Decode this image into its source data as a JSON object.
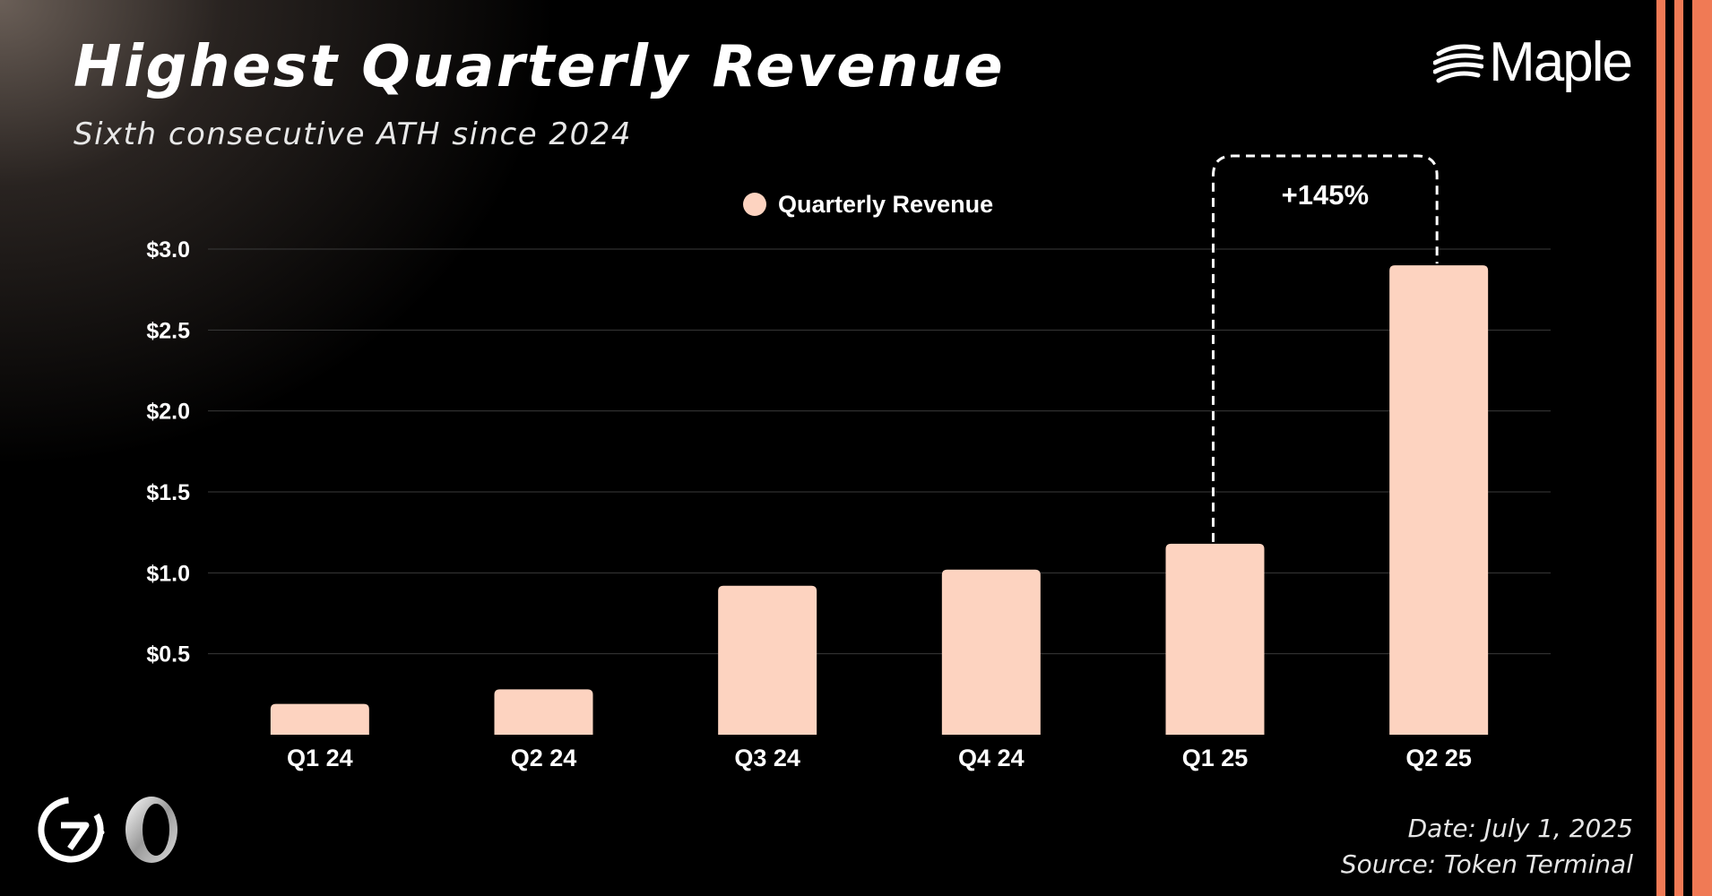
{
  "header": {
    "title": "Highest Quarterly Revenue",
    "subtitle": "Sixth consecutive ATH since 2024"
  },
  "brand": {
    "name": "Maple",
    "icon": "maple-wave-icon"
  },
  "chart_data": {
    "type": "bar",
    "title": "Highest Quarterly Revenue",
    "subtitle": "Sixth consecutive ATH since 2024",
    "categories": [
      "Q1 24",
      "Q2 24",
      "Q3 24",
      "Q4 24",
      "Q1 25",
      "Q2 25"
    ],
    "series": [
      {
        "name": "Quarterly Revenue",
        "values": [
          0.19,
          0.28,
          0.92,
          1.02,
          1.18,
          2.9
        ]
      }
    ],
    "ylim": [
      0,
      3.0
    ],
    "y_ticks": [
      0.5,
      1.0,
      1.5,
      2.0,
      2.5,
      3.0
    ],
    "y_tick_labels": [
      "$0.5",
      "$1.0",
      "$1.5",
      "$2.0",
      "$2.5",
      "$3.0"
    ],
    "xlabel": "",
    "ylabel": "",
    "grid": true,
    "legend": {
      "position": "top-center",
      "label": "Quarterly Revenue"
    },
    "annotation": {
      "text": "+145%",
      "from": "Q1 25",
      "to": "Q2 25"
    },
    "colors": {
      "bar": "#fdd3c0",
      "grid": "#3a3a3a",
      "accent": "#f07a55"
    }
  },
  "footer": {
    "date": "Date: July 1, 2025",
    "source": "Source: Token Terminal",
    "logos": [
      "g7-logo",
      "ring-logo"
    ]
  }
}
